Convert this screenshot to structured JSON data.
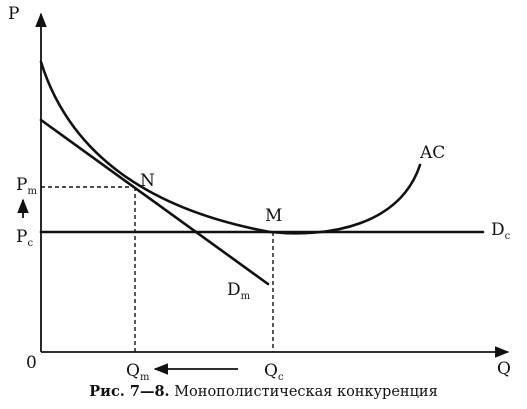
{
  "axes": {
    "y_label": "P",
    "x_label": "Q",
    "origin_label": "0"
  },
  "price_levels": {
    "monopoly": {
      "base": "P",
      "sub": "m"
    },
    "competitive": {
      "base": "P",
      "sub": "c"
    }
  },
  "quantity_levels": {
    "monopoly": {
      "base": "Q",
      "sub": "m"
    },
    "competitive": {
      "base": "Q",
      "sub": "c"
    }
  },
  "points": {
    "n": "N",
    "m": "M"
  },
  "curves": {
    "ac": "AC",
    "dm": {
      "base": "D",
      "sub": "m"
    },
    "dc": {
      "base": "D",
      "sub": "c"
    }
  },
  "caption": {
    "number": "Рис. 7—8.",
    "title": "Монополистическая конкуренция"
  }
}
